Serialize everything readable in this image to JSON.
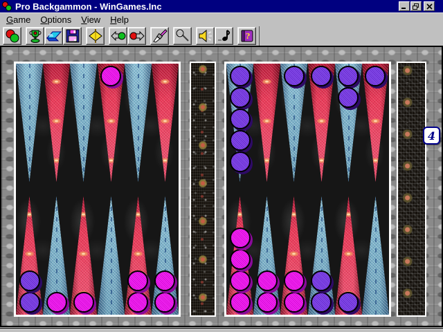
{
  "window": {
    "title": "Pro Backgammon - WinGames.Inc",
    "controls": [
      {
        "id": "minimize",
        "icon": "minimize-icon"
      },
      {
        "id": "restore",
        "icon": "restore-icon"
      },
      {
        "id": "close",
        "icon": "close-icon"
      }
    ]
  },
  "menu": {
    "items": [
      {
        "id": "game",
        "accel": "G",
        "rest": "ame"
      },
      {
        "id": "options",
        "accel": "O",
        "rest": "ptions"
      },
      {
        "id": "view",
        "accel": "V",
        "rest": "iew"
      },
      {
        "id": "help",
        "accel": "H",
        "rest": "elp"
      }
    ]
  },
  "toolbar": {
    "buttons": [
      {
        "id": "new-game",
        "icon": "checkers-icon",
        "group": 0
      },
      {
        "id": "scores",
        "icon": "trophy-icon",
        "group": 1
      },
      {
        "id": "open",
        "icon": "open-icon",
        "group": 1
      },
      {
        "id": "save",
        "icon": "floppy-icon",
        "group": 1
      },
      {
        "id": "roll-dice",
        "icon": "spinner-icon",
        "group": 2
      },
      {
        "id": "undo-move",
        "icon": "undo-icon",
        "group": 3
      },
      {
        "id": "redo-move",
        "icon": "redo-icon",
        "group": 3
      },
      {
        "id": "board-design",
        "icon": "brush-icon",
        "group": 4
      },
      {
        "id": "record",
        "icon": "microphone-icon",
        "group": 5
      },
      {
        "id": "sound",
        "icon": "speaker-icon",
        "group": 6
      },
      {
        "id": "music",
        "icon": "note-icon",
        "group": 6
      },
      {
        "id": "help-contents",
        "icon": "help-book-icon",
        "group": 7
      }
    ]
  },
  "board": {
    "doubling_cube": {
      "value": "4"
    },
    "colors": {
      "magenta": "#f606f6",
      "magenta_shadow": "#8a0a9a",
      "purple": "#7430ec",
      "purple_shadow": "#2e0a66",
      "red_point": "#e23350",
      "blue_point": "#7cb4cb",
      "title_bar": "#000080"
    },
    "quadrants": {
      "top_left": {
        "points": [
          {
            "color": "blue",
            "checker": null,
            "count": 0
          },
          {
            "color": "red",
            "checker": null,
            "count": 0
          },
          {
            "color": "blue",
            "checker": null,
            "count": 0
          },
          {
            "color": "red",
            "checker": "magenta",
            "count": 1
          },
          {
            "color": "blue",
            "checker": null,
            "count": 0
          },
          {
            "color": "red",
            "checker": null,
            "count": 0
          }
        ]
      },
      "top_right": {
        "points": [
          {
            "color": "blue",
            "checker": "purple",
            "count": 5
          },
          {
            "color": "red",
            "checker": null,
            "count": 0
          },
          {
            "color": "blue",
            "checker": "purple",
            "count": 1
          },
          {
            "color": "red",
            "checker": "purple",
            "count": 1
          },
          {
            "color": "blue",
            "checker": "purple",
            "count": 2
          },
          {
            "color": "red",
            "checker": "purple",
            "count": 1
          }
        ]
      },
      "bottom_left": {
        "points": [
          {
            "color": "red",
            "checker": "purple",
            "count": 2
          },
          {
            "color": "blue",
            "checker": "magenta",
            "count": 1
          },
          {
            "color": "red",
            "checker": "magenta",
            "count": 1
          },
          {
            "color": "blue",
            "checker": null,
            "count": 0
          },
          {
            "color": "red",
            "checker": "magenta",
            "count": 2
          },
          {
            "color": "blue",
            "checker": "magenta",
            "count": 2
          }
        ]
      },
      "bottom_right": {
        "points": [
          {
            "color": "red",
            "checker": "magenta",
            "count": 4
          },
          {
            "color": "blue",
            "checker": "magenta",
            "count": 2
          },
          {
            "color": "red",
            "checker": "magenta",
            "count": 2
          },
          {
            "color": "blue",
            "checker": "purple",
            "count": 2
          },
          {
            "color": "red",
            "checker": "purple",
            "count": 1
          },
          {
            "color": "blue",
            "checker": null,
            "count": 0
          }
        ]
      }
    }
  }
}
